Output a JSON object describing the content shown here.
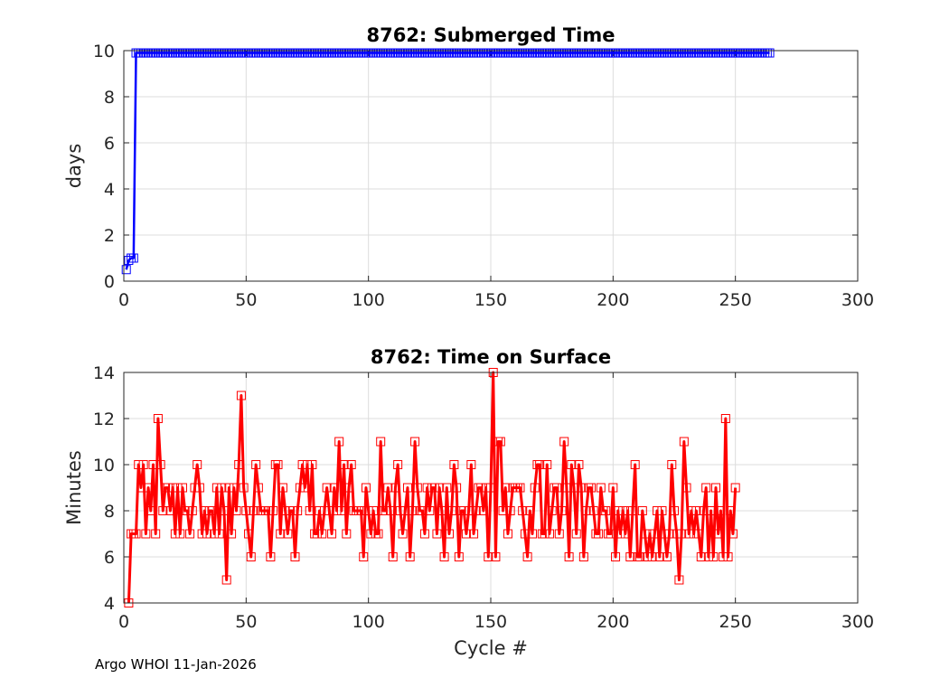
{
  "footer": "Argo WHOI 11-Jan-2026",
  "chart_data": [
    {
      "type": "line",
      "title": "8762: Submerged Time",
      "xlabel": "",
      "ylabel": "days",
      "xlim": [
        0,
        300
      ],
      "ylim": [
        0,
        10
      ],
      "xticks": [
        "0",
        "50",
        "100",
        "150",
        "200",
        "250",
        "300"
      ],
      "yticks": [
        "0",
        "2",
        "4",
        "6",
        "8",
        "10"
      ],
      "grid": true,
      "color": "#0000ff",
      "marker": "square",
      "series": [
        {
          "x_start": 1,
          "values": [
            0.5,
            0.9,
            1.0,
            1.0,
            9.9,
            9.9,
            9.9,
            9.9,
            9.9,
            9.9,
            9.9,
            9.9,
            9.9,
            9.9,
            9.9,
            9.9,
            9.9,
            9.9,
            9.9,
            9.9,
            9.9,
            9.9,
            9.9,
            9.9,
            9.9,
            9.9,
            9.9,
            9.9,
            9.9,
            9.9,
            9.9,
            9.9,
            9.9,
            9.9,
            9.9,
            9.9,
            9.9,
            9.9,
            9.9,
            9.9,
            9.9,
            9.9,
            9.9,
            9.9,
            9.9,
            9.9,
            9.9,
            9.9,
            9.9,
            9.9,
            9.9,
            9.9,
            9.9,
            9.9,
            9.9,
            9.9,
            9.9,
            9.9,
            9.9,
            9.9,
            9.9,
            9.9,
            9.9,
            9.9,
            9.9,
            9.9,
            9.9,
            9.9,
            9.9,
            9.9,
            9.9,
            9.9,
            9.9,
            9.9,
            9.9,
            9.9,
            9.9,
            9.9,
            9.9,
            9.9,
            9.9,
            9.9,
            9.9,
            9.9,
            9.9,
            9.9,
            9.9,
            9.9,
            9.9,
            9.9,
            9.9,
            9.9,
            9.9,
            9.9,
            9.9,
            9.9,
            9.9,
            9.9,
            9.9,
            9.9,
            9.9,
            9.9,
            9.9,
            9.9,
            9.9,
            9.9,
            9.9,
            9.9,
            9.9,
            9.9,
            9.9,
            9.9,
            9.9,
            9.9,
            9.9,
            9.9,
            9.9,
            9.9,
            9.9,
            9.9,
            9.9,
            9.9,
            9.9,
            9.9,
            9.9,
            9.9,
            9.9,
            9.9,
            9.9,
            9.9,
            9.9,
            9.9,
            9.9,
            9.9,
            9.9,
            9.9,
            9.9,
            9.9,
            9.9,
            9.9,
            9.9,
            9.9,
            9.9,
            9.9,
            9.9,
            9.9,
            9.9,
            9.9,
            9.9,
            9.9,
            9.9,
            9.9,
            9.9,
            9.9,
            9.9,
            9.9,
            9.9,
            9.9,
            9.9,
            9.9,
            9.9,
            9.9,
            9.9,
            9.9,
            9.9,
            9.9,
            9.9,
            9.9,
            9.9,
            9.9,
            9.9,
            9.9,
            9.9,
            9.9,
            9.9,
            9.9,
            9.9,
            9.9,
            9.9,
            9.9,
            9.9,
            9.9,
            9.9,
            9.9,
            9.9,
            9.9,
            9.9,
            9.9,
            9.9,
            9.9,
            9.9,
            9.9,
            9.9,
            9.9,
            9.9,
            9.9,
            9.9,
            9.9,
            9.9,
            9.9,
            9.9,
            9.9,
            9.9,
            9.9,
            9.9,
            9.9,
            9.9,
            9.9,
            9.9,
            9.9,
            9.9,
            9.9,
            9.9,
            9.9,
            9.9,
            9.9,
            9.9,
            9.9,
            9.9,
            9.9,
            9.9,
            9.9,
            9.9,
            9.9,
            9.9,
            9.9,
            9.9,
            9.9,
            9.9,
            9.9,
            9.9,
            9.9,
            9.9,
            9.9,
            9.9,
            9.9,
            9.9,
            9.9,
            9.9,
            9.9,
            9.9,
            9.9,
            9.9,
            9.9,
            9.9,
            9.9,
            9.9,
            9.9,
            9.9,
            9.9,
            9.9,
            9.9,
            9.9,
            9.9,
            9.9,
            9.9,
            9.9,
            9.9,
            9.9,
            9.9,
            9.9,
            9.9,
            9.9,
            9.9
          ]
        }
      ]
    },
    {
      "type": "line",
      "title": "8762: Time on Surface",
      "xlabel": "Cycle #",
      "ylabel": "Minutes",
      "xlim": [
        0,
        300
      ],
      "ylim": [
        4,
        14
      ],
      "xticks": [
        "0",
        "50",
        "100",
        "150",
        "200",
        "250",
        "300"
      ],
      "yticks": [
        "4",
        "6",
        "8",
        "10",
        "12",
        "14"
      ],
      "grid": true,
      "color": "#ff0000",
      "marker": "square",
      "series": [
        {
          "x_start": 2,
          "values": [
            4,
            7,
            7,
            7,
            10,
            9,
            10,
            7,
            9,
            8,
            10,
            7,
            12,
            10,
            8,
            9,
            9,
            8,
            9,
            7,
            9,
            7,
            9,
            8,
            8,
            7,
            8,
            9,
            10,
            9,
            7,
            8,
            7,
            8,
            8,
            7,
            9,
            7,
            9,
            8,
            5,
            9,
            7,
            9,
            8,
            10,
            13,
            9,
            8,
            7,
            6,
            8,
            10,
            9,
            8,
            8,
            8,
            8,
            6,
            8,
            10,
            10,
            7,
            9,
            8,
            7,
            8,
            8,
            6,
            8,
            9,
            10,
            9,
            10,
            8,
            10,
            7,
            7,
            8,
            7,
            8,
            9,
            8,
            7,
            9,
            8,
            11,
            8,
            10,
            7,
            9,
            10,
            8,
            8,
            8,
            8,
            6,
            9,
            8,
            7,
            8,
            7,
            7,
            11,
            8,
            8,
            9,
            8,
            6,
            9,
            10,
            8,
            7,
            8,
            9,
            6,
            8,
            11,
            9,
            8,
            8,
            7,
            9,
            8,
            9,
            9,
            7,
            9,
            8,
            6,
            9,
            7,
            8,
            10,
            9,
            6,
            8,
            8,
            7,
            8,
            10,
            7,
            8,
            9,
            9,
            8,
            9,
            6,
            9,
            14,
            6,
            11,
            11,
            8,
            9,
            7,
            8,
            9,
            9,
            9,
            9,
            8,
            7,
            6,
            8,
            7,
            9,
            10,
            10,
            7,
            7,
            10,
            7,
            8,
            9,
            9,
            7,
            8,
            11,
            9,
            6,
            10,
            9,
            7,
            10,
            9,
            6,
            8,
            9,
            9,
            8,
            7,
            7,
            9,
            8,
            8,
            7,
            7,
            9,
            6,
            8,
            7,
            8,
            7,
            8,
            6,
            8,
            10,
            6,
            6,
            8,
            7,
            6,
            7,
            6,
            7,
            8,
            6,
            8,
            7,
            6,
            7,
            10,
            8,
            7,
            5,
            7,
            11,
            9,
            7,
            8,
            7,
            8,
            7,
            6,
            8,
            9,
            6,
            8,
            6,
            9,
            7,
            8,
            6,
            12,
            6,
            8,
            7,
            9
          ]
        }
      ]
    }
  ]
}
